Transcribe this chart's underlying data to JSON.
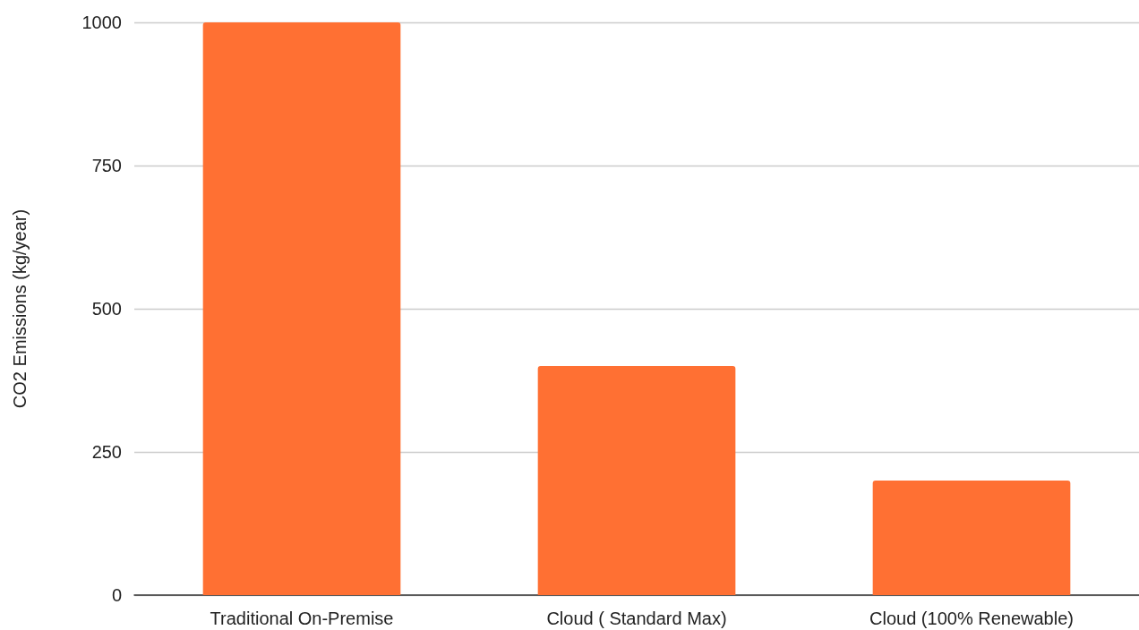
{
  "chart_data": {
    "type": "bar",
    "ylabel": "CO2 Emissions (kg/year)",
    "categories": [
      "Traditional On-Premise",
      "Cloud ( Standard Max)",
      "Cloud (100% Renewable)"
    ],
    "values": [
      1000,
      400,
      200
    ],
    "color": "#ff7033",
    "ylim": [
      0,
      1000
    ],
    "yticks": [
      0,
      250,
      500,
      750,
      1000
    ],
    "grid": "y"
  }
}
